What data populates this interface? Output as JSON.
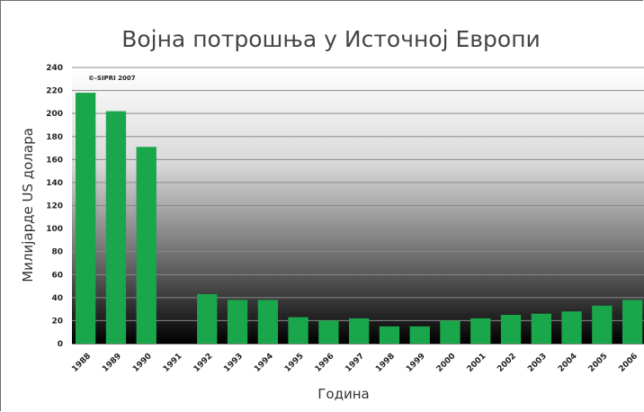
{
  "chart_data": {
    "type": "bar",
    "title": "Војна потрошња у Источној Европи",
    "xlabel": "Година",
    "ylabel": "Милијарде US долара",
    "annotation": "©-SIPRI 2007",
    "categories": [
      "1988",
      "1989",
      "1990",
      "1991",
      "1992",
      "1993",
      "1994",
      "1995",
      "1996",
      "1997",
      "1998",
      "1999",
      "2000",
      "2001",
      "2002",
      "2003",
      "2004",
      "2005",
      "2006"
    ],
    "values": [
      218,
      202,
      171,
      0,
      43,
      38,
      38,
      23,
      20,
      22,
      15,
      15,
      20,
      22,
      25,
      26,
      28,
      33,
      38
    ],
    "ylim": [
      0,
      240
    ],
    "yticks": [
      0,
      20,
      40,
      60,
      80,
      100,
      120,
      140,
      160,
      180,
      200,
      220,
      240
    ],
    "grid": true,
    "bar_color": "#1aa64a",
    "background": "vertical gradient white to black"
  }
}
